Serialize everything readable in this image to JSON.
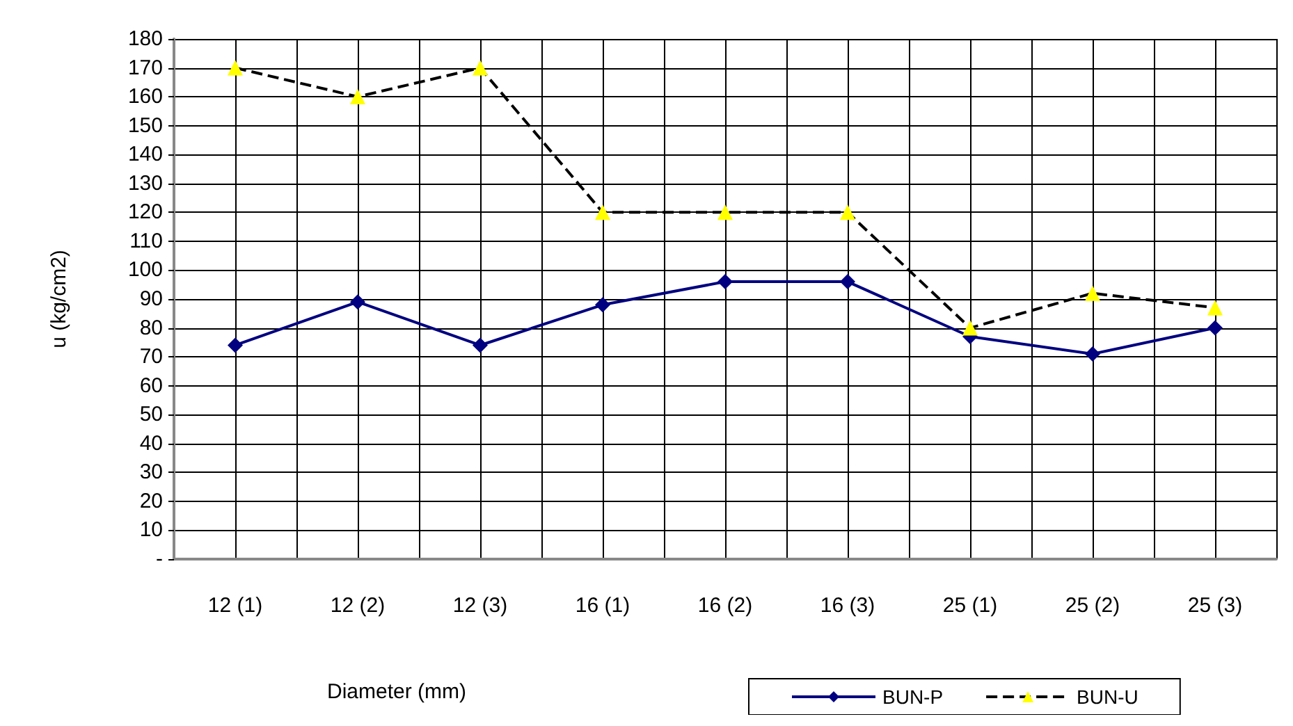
{
  "chart_data": {
    "type": "line",
    "xlabel": "Diameter (mm)",
    "ylabel": "u (kg/cm2)",
    "categories": [
      "12 (1)",
      "12 (2)",
      "12 (3)",
      "16 (1)",
      "16 (2)",
      "16 (3)",
      "25 (1)",
      "25 (2)",
      "25 (3)"
    ],
    "series": [
      {
        "name": "BUN-P",
        "color": "#000080",
        "marker": "diamond",
        "line_style": "solid",
        "values": [
          74,
          89,
          74,
          88,
          96,
          96,
          77,
          71,
          80
        ]
      },
      {
        "name": "BUN-U",
        "color": "#ffff00",
        "marker": "triangle",
        "line_style": "dashed",
        "values": [
          170,
          160,
          170,
          120,
          120,
          120,
          80,
          92,
          87
        ]
      }
    ],
    "ylim": [
      0,
      180
    ],
    "yticks": [
      {
        "value": 0,
        "label": "-"
      },
      10,
      20,
      30,
      40,
      50,
      60,
      70,
      80,
      90,
      100,
      110,
      120,
      130,
      140,
      150,
      160,
      170,
      180
    ],
    "grid": true,
    "legend": "bottom"
  }
}
